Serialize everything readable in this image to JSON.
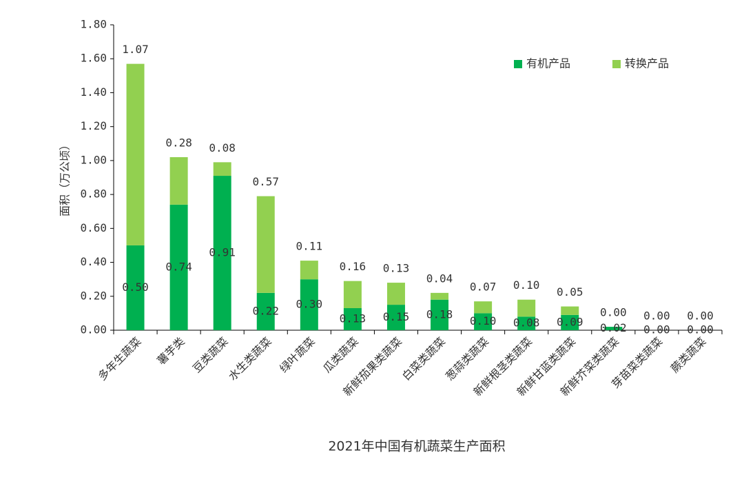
{
  "chart_data": {
    "type": "stacked-bar",
    "title": "2021年中国有机蔬菜生产面积",
    "y_label": "面积（万公顷）",
    "categories": [
      "多年生蔬菜",
      "薯芋类",
      "豆类蔬菜",
      "水生类蔬菜",
      "绿叶蔬菜",
      "瓜类蔬菜",
      "新鲜茄果类蔬菜",
      "白菜类蔬菜",
      "葱蒜类蔬菜",
      "新鲜根茎类蔬菜",
      "新鲜甘蓝类蔬菜",
      "新鲜芥菜类蔬菜",
      "芽苗菜类蔬菜",
      "蕨类蔬菜"
    ],
    "series": [
      {
        "name": "有机产品",
        "color": "#00b050",
        "values": [
          0.5,
          0.74,
          0.91,
          0.22,
          0.3,
          0.13,
          0.15,
          0.18,
          0.1,
          0.08,
          0.09,
          0.02,
          0,
          0
        ],
        "value_labels": [
          "0.50",
          "0.74",
          "0.91",
          "0.22",
          "0.30",
          "0.13",
          "0.15",
          "0.18",
          "0.10",
          "0.08",
          "0.09",
          "0.02",
          "0.00",
          "0.00"
        ]
      },
      {
        "name": "转换产品",
        "color": "#92d050",
        "values": [
          1.07,
          0.28,
          0.08,
          0.57,
          0.11,
          0.16,
          0.13,
          0.04,
          0.07,
          0.1,
          0.05,
          0,
          0,
          0
        ],
        "value_labels": [
          "1.07",
          "0.28",
          "0.08",
          "0.57",
          "0.11",
          "0.16",
          "0.13",
          "0.04",
          "0.07",
          "0.10",
          "0.05",
          "0.00",
          "0.00",
          "0.00"
        ]
      }
    ],
    "ylim": [
      0,
      1.8
    ],
    "yticks": [
      {
        "value": 0,
        "label": "0.00"
      },
      {
        "value": 0.2,
        "label": "0.20"
      },
      {
        "value": 0.4,
        "label": "0.40"
      },
      {
        "value": 0.6,
        "label": "0.60"
      },
      {
        "value": 0.8,
        "label": "0.80"
      },
      {
        "value": 1,
        "label": "1.00"
      },
      {
        "value": 1.2,
        "label": "1.20"
      },
      {
        "value": 1.4,
        "label": "1.40"
      },
      {
        "value": 1.6,
        "label": "1.60"
      },
      {
        "value": 1.8,
        "label": "1.80"
      }
    ],
    "grid": false,
    "legend": "top-right"
  }
}
